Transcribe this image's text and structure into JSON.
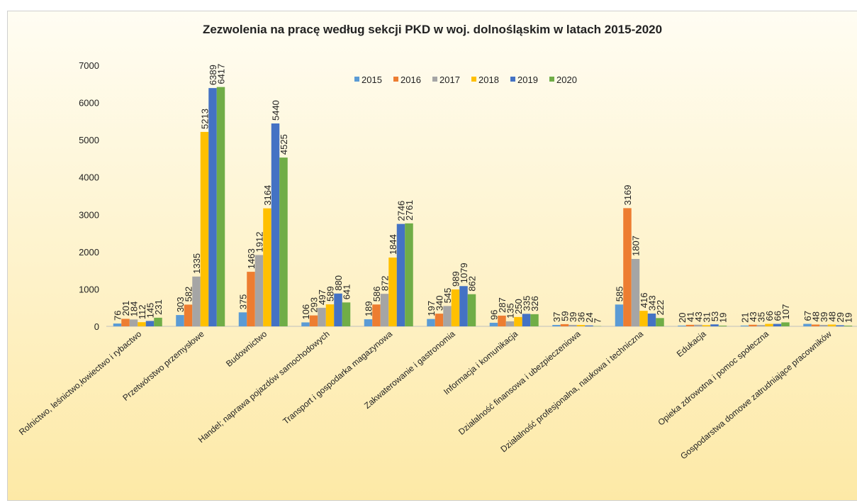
{
  "chart_data": {
    "type": "bar",
    "title": "Zezwolenia na pracę według sekcji PKD w woj. dolnośląskim  w latach 2015-2020",
    "categories": [
      "Rolnictwo, leśnictwo,łowiectwo i rybactwo",
      "Przetwórstwo przemysłowe",
      "Budownictwo",
      "Handel; naprawa pojazdów samochodowych",
      "Transport i gospodarka magazynowa",
      "Zakwaterowanie i gastronomia",
      "Informacja i komunikacja",
      "Działalność finansowa i ubezpieczeniowa",
      "Działalność profesjonalna, naukowa i techniczna",
      "Edukacja",
      "Opieka zdrowotna i pomoc społeczna",
      "Gospodarstwa domowe zatrudniające pracowników"
    ],
    "series": [
      {
        "name": "2015",
        "color": "#5b9bd5",
        "values": [
          76,
          303,
          375,
          106,
          189,
          197,
          96,
          37,
          585,
          20,
          21,
          67
        ]
      },
      {
        "name": "2016",
        "color": "#ed7d31",
        "values": [
          201,
          582,
          1463,
          293,
          586,
          340,
          287,
          59,
          3169,
          41,
          43,
          48
        ]
      },
      {
        "name": "2017",
        "color": "#a5a5a5",
        "values": [
          184,
          1335,
          1912,
          497,
          872,
          545,
          135,
          39,
          1807,
          43,
          35,
          39
        ]
      },
      {
        "name": "2018",
        "color": "#ffc000",
        "values": [
          112,
          5213,
          3164,
          589,
          1844,
          989,
          250,
          36,
          416,
          31,
          66,
          48
        ]
      },
      {
        "name": "2019",
        "color": "#4472c4",
        "values": [
          145,
          6389,
          5440,
          880,
          2746,
          1079,
          335,
          24,
          343,
          53,
          66,
          29
        ]
      },
      {
        "name": "2020",
        "color": "#70ad47",
        "values": [
          231,
          6417,
          4525,
          641,
          2761,
          862,
          326,
          7,
          222,
          19,
          107,
          19
        ]
      }
    ],
    "ylim": [
      0,
      7000
    ],
    "yticks": [
      0,
      1000,
      2000,
      3000,
      4000,
      5000,
      6000,
      7000
    ],
    "grid": false,
    "legend": "top"
  }
}
